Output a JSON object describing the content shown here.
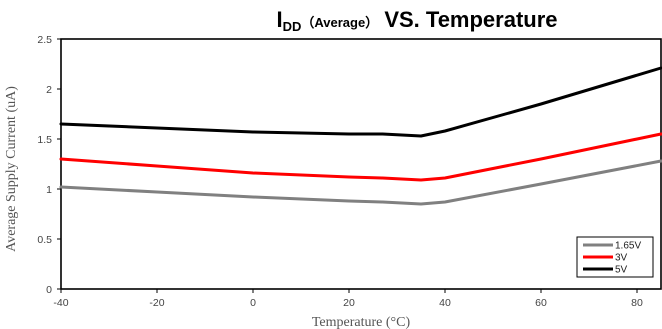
{
  "chart_data": {
    "type": "line",
    "title": {
      "prefix": "I",
      "subscript": "DD",
      "qualifier": "（Average）",
      "suffix": " VS. Temperature"
    },
    "xlabel": "Temperature (°C)",
    "ylabel": "Average Supply Current (uA)",
    "xlim": [
      -40,
      85
    ],
    "ylim": [
      0,
      2.5
    ],
    "xticks": [
      -40,
      -20,
      0,
      20,
      40,
      60,
      80
    ],
    "yticks": [
      0,
      0.5,
      1,
      1.5,
      2,
      2.5
    ],
    "ytick_labels": [
      "0",
      "0.5",
      "1",
      "1.5",
      "2",
      "2.5"
    ],
    "grid": false,
    "legend": {
      "position": "bottom-right",
      "framed": true
    },
    "series": [
      {
        "name": "1.65V",
        "color": "#808080",
        "x": [
          -40,
          -20,
          0,
          20,
          27,
          35,
          40,
          60,
          85
        ],
        "y": [
          1.02,
          0.97,
          0.92,
          0.88,
          0.87,
          0.85,
          0.87,
          1.05,
          1.28
        ]
      },
      {
        "name": "3V",
        "color": "#ff0000",
        "x": [
          -40,
          -20,
          0,
          20,
          27,
          35,
          40,
          60,
          85
        ],
        "y": [
          1.3,
          1.23,
          1.16,
          1.12,
          1.11,
          1.09,
          1.11,
          1.3,
          1.55
        ]
      },
      {
        "name": "5V",
        "color": "#000000",
        "x": [
          -40,
          -20,
          0,
          20,
          27,
          35,
          40,
          60,
          85
        ],
        "y": [
          1.65,
          1.61,
          1.57,
          1.55,
          1.55,
          1.53,
          1.58,
          1.85,
          2.21
        ]
      }
    ]
  }
}
